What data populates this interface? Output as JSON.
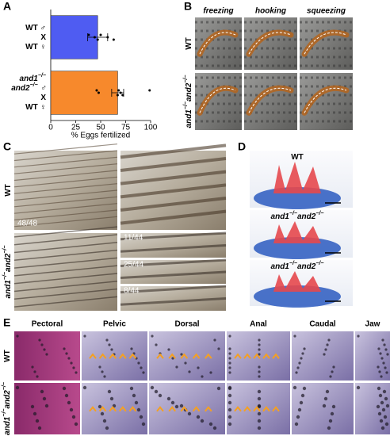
{
  "chart_data": {
    "type": "bar",
    "orientation": "horizontal",
    "categories": [
      [
        [
          "WT ♂"
        ],
        [
          "X"
        ],
        [
          "WT ♀"
        ]
      ],
      [
        [
          "and1",
          "−/−"
        ],
        [
          "and2",
          "−/−",
          " ♂"
        ],
        [
          "X"
        ],
        [
          "WT ♀"
        ]
      ]
    ],
    "values": [
      47,
      67
    ],
    "errors": [
      10,
      6
    ],
    "points": [
      [
        38,
        44,
        47,
        50,
        57,
        63
      ],
      [
        46,
        48,
        67,
        68,
        70,
        72,
        99
      ]
    ],
    "colors": [
      "#4f5cf2",
      "#f7892c"
    ],
    "xlabel": "% Eggs fertilized",
    "xlim": [
      0,
      100
    ],
    "xticks": [
      0,
      25,
      50,
      75,
      100
    ]
  },
  "panel_labels": [
    "A",
    "B",
    "C",
    "D",
    "E"
  ],
  "panel_b": {
    "columns": [
      "freezing",
      "hooking",
      "squeezing"
    ],
    "rows": [
      [
        "WT"
      ],
      [
        "and1",
        "−/−",
        "and2",
        "−/−"
      ]
    ]
  },
  "panel_c": {
    "rows": [
      [
        "WT"
      ],
      [
        "and1",
        "−/−",
        "and2",
        "−/−"
      ]
    ],
    "counts": [
      "48/48",
      "11/44",
      "25/44",
      "8/44"
    ]
  },
  "panel_d": {
    "titles": [
      [
        "WT"
      ],
      [
        "and1",
        "−/−",
        "and2",
        "−/−"
      ],
      [
        "and1",
        "−/−",
        "and2",
        "−/−"
      ]
    ]
  },
  "panel_e": {
    "columns": [
      "Pectoral",
      "Pelvic",
      "Dorsal",
      "Anal",
      "Caudal",
      "Jaw"
    ],
    "rows": [
      [
        "WT"
      ],
      [
        "and1",
        "−/−",
        "and2",
        "−/−"
      ]
    ]
  }
}
